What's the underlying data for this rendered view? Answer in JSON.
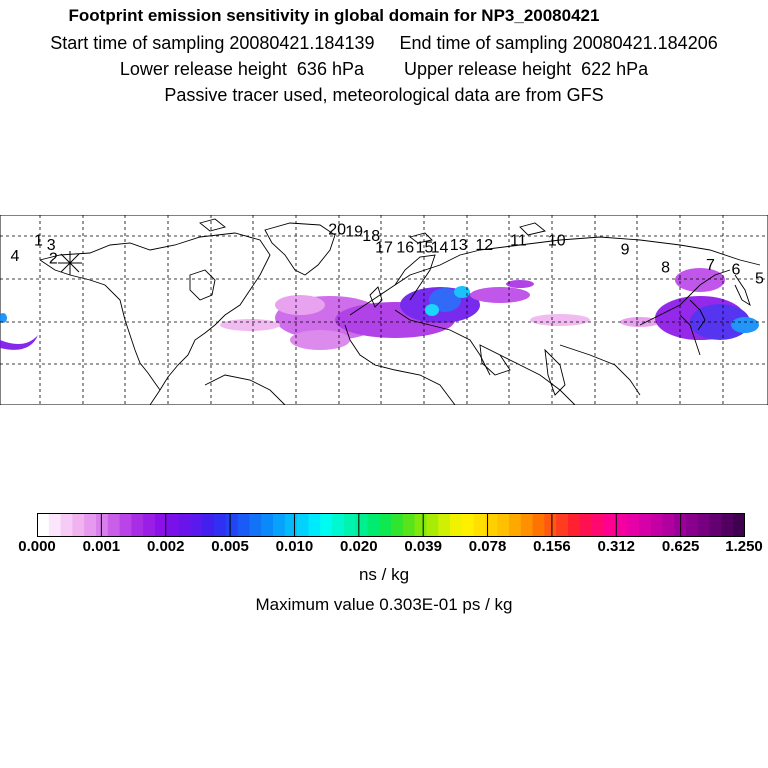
{
  "titles": {
    "line1": "Footprint emission sensitivity in global domain for NP3_20080421",
    "line2": "Start time of sampling 20080421.184139     End time of sampling 20080421.184206",
    "line3": "Lower release height  636 hPa        Upper release height  622 hPa",
    "line4": "Passive tracer used, meteorological data are from GFS"
  },
  "legend": {
    "ticks": [
      "0.000",
      "0.001",
      "0.002",
      "0.005",
      "0.010",
      "0.020",
      "0.039",
      "0.078",
      "0.156",
      "0.312",
      "0.625",
      "1.250"
    ],
    "unit": "ns / kg",
    "max_value": "Maximum value  0.303E-01 ps / kg",
    "colors": [
      "#ffffff",
      "#fbe6fb",
      "#f6ccf6",
      "#f0b3f0",
      "#e699ee",
      "#d97fec",
      "#c95fe8",
      "#bb44e8",
      "#a82ee6",
      "#9a1ee6",
      "#8a12e8",
      "#7a10ea",
      "#6a14ec",
      "#5a1aee",
      "#4420f0",
      "#3030f2",
      "#2244f4",
      "#1a5af6",
      "#1272f8",
      "#0a8afa",
      "#06a2fb",
      "#04bafc",
      "#02d2fd",
      "#00eafe",
      "#00fcf0",
      "#00f8d0",
      "#00f4b0",
      "#00f090",
      "#00ec70",
      "#10e850",
      "#30e430",
      "#58e418",
      "#80e80c",
      "#a8ec06",
      "#cff004",
      "#f0f200",
      "#fff000",
      "#ffe000",
      "#ffd000",
      "#ffc000",
      "#ffa800",
      "#ff9000",
      "#ff7400",
      "#ff5810",
      "#ff3c20",
      "#ff2030",
      "#ff1050",
      "#ff0870",
      "#ff0090",
      "#f400a0",
      "#e600a8",
      "#d600a8",
      "#c400a4",
      "#b000a0",
      "#9c0098",
      "#88008c",
      "#760080",
      "#640070",
      "#520060",
      "#400050"
    ]
  },
  "release_points": [
    {
      "id": "1",
      "lon": -162,
      "lat": 64
    },
    {
      "id": "2",
      "lon": -155,
      "lat": 56
    },
    {
      "id": "3",
      "lon": -156,
      "lat": 62
    },
    {
      "id": "4",
      "lon": -173,
      "lat": 57
    },
    {
      "id": "5",
      "lon": 176,
      "lat": 47
    },
    {
      "id": "6",
      "lon": 165,
      "lat": 51
    },
    {
      "id": "7",
      "lon": 153,
      "lat": 53
    },
    {
      "id": "8",
      "lon": 132,
      "lat": 52
    },
    {
      "id": "9",
      "lon": 113,
      "lat": 60
    },
    {
      "id": "10",
      "lon": 81,
      "lat": 64
    },
    {
      "id": "11",
      "lon": 63,
      "lat": 64
    },
    {
      "id": "12",
      "lon": 47,
      "lat": 62
    },
    {
      "id": "13",
      "lon": 35,
      "lat": 62
    },
    {
      "id": "14",
      "lon": 26,
      "lat": 61
    },
    {
      "id": "15",
      "lon": 19,
      "lat": 61
    },
    {
      "id": "16",
      "lon": 10,
      "lat": 61
    },
    {
      "id": "17",
      "lon": 0,
      "lat": 61
    },
    {
      "id": "18",
      "lon": -6,
      "lat": 66
    },
    {
      "id": "19",
      "lon": -14,
      "lat": 68
    },
    {
      "id": "20",
      "lon": -22,
      "lat": 69
    }
  ]
}
